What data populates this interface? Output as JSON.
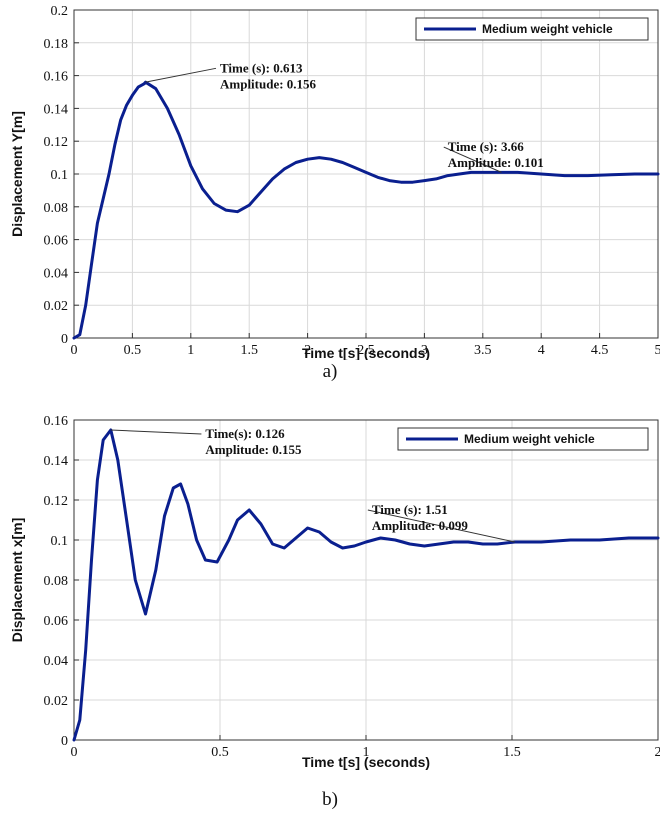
{
  "captions": {
    "a": "a)",
    "b": "b)"
  },
  "chart_data": [
    {
      "id": "a",
      "type": "line",
      "title": "",
      "xlabel": "Time t[s] (seconds)",
      "ylabel": "Displacement Y[m]",
      "xlim": [
        0,
        5
      ],
      "ylim": [
        0,
        0.2
      ],
      "xticks": [
        0,
        0.5,
        1,
        1.5,
        2,
        2.5,
        3,
        3.5,
        4,
        4.5,
        5
      ],
      "xtick_labels": [
        "0",
        "0.5",
        "1",
        "1.5",
        "2",
        "2.5",
        "3",
        "3.5",
        "4",
        "4.5",
        "5"
      ],
      "yticks": [
        0,
        0.02,
        0.04,
        0.06,
        0.08,
        0.1,
        0.12,
        0.14,
        0.16,
        0.18,
        0.2
      ],
      "ytick_labels": [
        "0",
        "0.02",
        "0.04",
        "0.06",
        "0.08",
        "0.1",
        "0.12",
        "0.14",
        "0.16",
        "0.18",
        "0.2"
      ],
      "grid": true,
      "legend_position": "top-right",
      "color": "#0a1f8f",
      "series": [
        {
          "name": "Medium weight vehicle",
          "x": [
            0,
            0.05,
            0.1,
            0.15,
            0.2,
            0.25,
            0.3,
            0.35,
            0.4,
            0.45,
            0.5,
            0.55,
            0.6,
            0.613,
            0.7,
            0.8,
            0.9,
            1.0,
            1.1,
            1.2,
            1.3,
            1.4,
            1.5,
            1.6,
            1.7,
            1.8,
            1.9,
            2.0,
            2.1,
            2.2,
            2.3,
            2.4,
            2.5,
            2.6,
            2.7,
            2.8,
            2.9,
            3.0,
            3.1,
            3.2,
            3.3,
            3.4,
            3.5,
            3.66,
            3.8,
            4.0,
            4.2,
            4.4,
            4.6,
            4.8,
            5.0
          ],
          "y": [
            0,
            0.002,
            0.02,
            0.045,
            0.07,
            0.085,
            0.1,
            0.118,
            0.133,
            0.142,
            0.148,
            0.153,
            0.155,
            0.156,
            0.152,
            0.14,
            0.124,
            0.105,
            0.091,
            0.082,
            0.078,
            0.077,
            0.081,
            0.089,
            0.097,
            0.103,
            0.107,
            0.109,
            0.11,
            0.109,
            0.107,
            0.104,
            0.101,
            0.098,
            0.096,
            0.095,
            0.095,
            0.096,
            0.097,
            0.099,
            0.1,
            0.101,
            0.101,
            0.101,
            0.101,
            0.1,
            0.099,
            0.099,
            0.0995,
            0.1,
            0.1
          ]
        }
      ],
      "annotations": [
        {
          "x": 0.613,
          "y": 0.156,
          "label_x": 1.25,
          "label_y": 0.162,
          "lines": [
            "Time (s): 0.613",
            "Amplitude: 0.156"
          ]
        },
        {
          "x": 3.66,
          "y": 0.101,
          "label_x": 3.2,
          "label_y": 0.114,
          "lines": [
            "Time (s): 3.66",
            "Amplitude: 0.101"
          ]
        }
      ]
    },
    {
      "id": "b",
      "type": "line",
      "title": "",
      "xlabel": "Time t[s] (seconds)",
      "ylabel": "Displacement x[m]",
      "xlim": [
        0,
        2
      ],
      "ylim": [
        0,
        0.16
      ],
      "xticks": [
        0,
        0.5,
        1,
        1.5,
        2
      ],
      "xtick_labels": [
        "0",
        "0.5",
        "1",
        "1.5",
        "2"
      ],
      "yticks": [
        0,
        0.02,
        0.04,
        0.06,
        0.08,
        0.1,
        0.12,
        0.14,
        0.16
      ],
      "ytick_labels": [
        "0",
        "0.02",
        "0.04",
        "0.06",
        "0.08",
        "0.1",
        "0.12",
        "0.14",
        "0.16"
      ],
      "grid": true,
      "legend_position": "top-right",
      "color": "#0a1f8f",
      "series": [
        {
          "name": "Medium weight vehicle",
          "x": [
            0,
            0.02,
            0.04,
            0.06,
            0.08,
            0.1,
            0.126,
            0.15,
            0.18,
            0.21,
            0.245,
            0.28,
            0.31,
            0.34,
            0.365,
            0.39,
            0.42,
            0.45,
            0.49,
            0.53,
            0.56,
            0.6,
            0.64,
            0.68,
            0.72,
            0.76,
            0.8,
            0.84,
            0.88,
            0.92,
            0.96,
            1.0,
            1.05,
            1.1,
            1.15,
            1.2,
            1.25,
            1.3,
            1.35,
            1.4,
            1.45,
            1.51,
            1.6,
            1.7,
            1.8,
            1.9,
            2.0
          ],
          "y": [
            0,
            0.01,
            0.045,
            0.09,
            0.13,
            0.15,
            0.155,
            0.14,
            0.11,
            0.08,
            0.063,
            0.085,
            0.112,
            0.126,
            0.128,
            0.118,
            0.1,
            0.09,
            0.089,
            0.1,
            0.11,
            0.115,
            0.108,
            0.098,
            0.096,
            0.101,
            0.106,
            0.104,
            0.099,
            0.096,
            0.097,
            0.099,
            0.101,
            0.1,
            0.098,
            0.097,
            0.098,
            0.099,
            0.099,
            0.098,
            0.098,
            0.099,
            0.099,
            0.1,
            0.1,
            0.101,
            0.101
          ]
        }
      ],
      "annotations": [
        {
          "x": 0.126,
          "y": 0.155,
          "label_x": 0.45,
          "label_y": 0.151,
          "lines": [
            "Time(s): 0.126",
            "Amplitude: 0.155"
          ]
        },
        {
          "x": 1.51,
          "y": 0.099,
          "label_x": 1.02,
          "label_y": 0.113,
          "lines": [
            "Time (s): 1.51",
            "Amplitude: 0.099"
          ]
        }
      ]
    }
  ]
}
